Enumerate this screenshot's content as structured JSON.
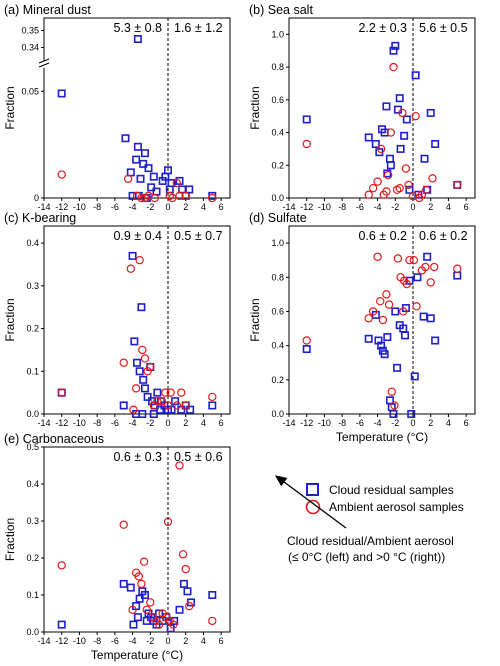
{
  "figure": {
    "legend": {
      "cloud_label": "Cloud residual samples",
      "ambient_label": "Ambient aerosol samples",
      "cloud_color": "#1f1fcc",
      "ambient_color": "#e01a1a"
    },
    "annotation": {
      "line1": "Cloud residual/Ambient aerosol",
      "line2": "(≤ 0°C (left) and >0 °C (right))"
    }
  },
  "chart_data": [
    {
      "panel": "(a)",
      "title": "Mineral dust",
      "type": "scatter",
      "ylabel": "Fraction",
      "xlabel": "",
      "xlim": [
        -14,
        7
      ],
      "ylim": [
        0,
        0.35
      ],
      "broken_axis": {
        "lower": [
          0,
          0.06
        ],
        "upper": [
          0.335,
          0.355
        ]
      },
      "xticks": [
        "-14",
        "-12",
        "-10",
        "-8",
        "-6",
        "-4",
        "-2",
        "0",
        "2",
        "4",
        "6"
      ],
      "yticks": [
        "0",
        "0.05",
        "0.34",
        "0.35"
      ],
      "ratio_left": "5.3 ± 0.8",
      "ratio_right": "1.6 ± 1.2",
      "series": [
        {
          "name": "Cloud residual samples",
          "marker": "square",
          "color": "#1f1fcc",
          "x": [
            -12,
            -4.8,
            -4.2,
            -3.6,
            -3.4,
            -3.1,
            -2.8,
            -2.6,
            -2.2,
            -1.9,
            -1.6,
            -1.3,
            -4.0,
            -3.3,
            -2.4,
            -0.6,
            -0.3,
            0.0,
            0.2,
            0.4,
            1.3,
            1.6,
            2.0,
            2.4,
            5.0,
            -3.4
          ],
          "y": [
            0.049,
            0.028,
            0.012,
            0.018,
            0.024,
            0.009,
            0.016,
            0.021,
            0.014,
            0.005,
            0.01,
            0.003,
            0.001,
            0.001,
            0.0,
            0.008,
            0.01,
            0.013,
            0.004,
            0.007,
            0.008,
            0.004,
            0.001,
            0.004,
            0.001,
            0.345
          ]
        },
        {
          "name": "Ambient aerosol samples",
          "marker": "circle",
          "color": "#e01a1a",
          "x": [
            -12,
            -4.5,
            -3.5,
            -3.0,
            -2.6,
            -2.2,
            -1.5,
            0.0,
            0.2,
            0.5,
            1.0,
            1.3,
            2.0,
            5.0
          ],
          "y": [
            0.011,
            0.009,
            0.001,
            0.0,
            0.0,
            0.001,
            0.0,
            0.061,
            0.001,
            0.0,
            0.007,
            0.001,
            0.001,
            0.0
          ]
        }
      ]
    },
    {
      "panel": "(b)",
      "title": "Sea salt",
      "type": "scatter",
      "ylabel": "Fraction",
      "xlabel": "",
      "xlim": [
        -14,
        7
      ],
      "ylim": [
        0,
        1.1
      ],
      "xticks": [
        "-14",
        "-12",
        "-10",
        "-8",
        "-6",
        "-4",
        "-2",
        "0",
        "2",
        "4",
        "6"
      ],
      "yticks": [
        "0.0",
        "0.2",
        "0.4",
        "0.6",
        "0.8",
        "1.0"
      ],
      "ratio_left": "2.2 ± 0.3",
      "ratio_right": "5.6 ± 0.5",
      "series": [
        {
          "name": "Cloud residual samples",
          "marker": "square",
          "color": "#1f1fcc",
          "x": [
            -12,
            -5.0,
            -4.2,
            -3.8,
            -3.5,
            -3.2,
            -2.9,
            -2.6,
            -2.2,
            -2.0,
            -1.7,
            -1.4,
            -1.0,
            -0.7,
            -0.4,
            0.3,
            0.6,
            1.3,
            1.6,
            2.0,
            2.5,
            5.0,
            -3.0,
            -2.5,
            -1.5
          ],
          "y": [
            0.48,
            0.37,
            0.33,
            0.28,
            0.42,
            0.4,
            0.15,
            0.24,
            0.9,
            0.93,
            0.54,
            0.3,
            0.38,
            0.48,
            0.05,
            0.75,
            0.02,
            0.24,
            0.05,
            0.52,
            0.33,
            0.08,
            0.56,
            0.2,
            0.61
          ]
        },
        {
          "name": "Ambient aerosol samples",
          "marker": "circle",
          "color": "#e01a1a",
          "x": [
            -12,
            -5.0,
            -4.5,
            -4.0,
            -3.6,
            -3.3,
            -3.0,
            -2.8,
            -2.5,
            -2.2,
            -1.8,
            -1.5,
            -1.2,
            -0.8,
            -0.5,
            0.0,
            0.3,
            0.7,
            1.0,
            1.5,
            2.2,
            5.0
          ],
          "y": [
            0.33,
            0.02,
            0.06,
            0.1,
            0.3,
            0.02,
            0.04,
            0.14,
            0.4,
            0.8,
            0.05,
            0.06,
            0.52,
            0.18,
            0.08,
            0.01,
            0.5,
            0.0,
            0.02,
            0.05,
            0.12,
            0.08
          ]
        }
      ]
    },
    {
      "panel": "(c)",
      "title": "K-bearing",
      "type": "scatter",
      "ylabel": "Fraction",
      "xlabel": "",
      "xlim": [
        -14,
        7
      ],
      "ylim": [
        0,
        0.44
      ],
      "xticks": [
        "-14",
        "-12",
        "-10",
        "-8",
        "-6",
        "-4",
        "-2",
        "0",
        "2",
        "4",
        "6"
      ],
      "yticks": [
        "0.0",
        "0.1",
        "0.2",
        "0.3",
        "0.4"
      ],
      "ratio_left": "0.9 ± 0.4",
      "ratio_right": "0.5 ± 0.7",
      "series": [
        {
          "name": "Cloud residual samples",
          "marker": "square",
          "color": "#1f1fcc",
          "x": [
            -12,
            -5.0,
            -4.0,
            -3.8,
            -3.5,
            -3.2,
            -3.0,
            -2.8,
            -2.6,
            -2.3,
            -2.0,
            -1.8,
            -1.5,
            -1.2,
            -0.8,
            -0.4,
            0.0,
            0.4,
            0.8,
            1.5,
            2.0,
            2.5,
            5.0,
            -3.6,
            -2.9,
            -1.6,
            -0.9
          ],
          "y": [
            0.05,
            0.02,
            0.37,
            0.17,
            0.12,
            0.1,
            0.25,
            0.08,
            0.06,
            0.04,
            0.11,
            0.03,
            0.02,
            0.05,
            0.03,
            0.02,
            0.01,
            0.01,
            0.03,
            0.01,
            0.02,
            0.01,
            0.02,
            0.0,
            0.0,
            0.0,
            0.01
          ]
        },
        {
          "name": "Ambient aerosol samples",
          "marker": "circle",
          "color": "#e01a1a",
          "x": [
            -12,
            -5.0,
            -4.2,
            -3.9,
            -3.6,
            -3.2,
            -2.9,
            -2.6,
            -2.3,
            -2.0,
            -1.6,
            -1.2,
            -0.7,
            -0.3,
            0.0,
            0.3,
            1.0,
            1.5,
            2.0,
            5.0
          ],
          "y": [
            0.05,
            0.12,
            0.34,
            0.01,
            0.06,
            0.36,
            0.15,
            0.13,
            0.1,
            0.11,
            0.02,
            0.03,
            0.03,
            0.05,
            0.02,
            0.05,
            0.02,
            0.05,
            0.02,
            0.04
          ]
        }
      ]
    },
    {
      "panel": "(d)",
      "title": "Sulfate",
      "type": "scatter",
      "ylabel": "Fraction",
      "xlabel": "Temperature (°C)",
      "xlim": [
        -14,
        7
      ],
      "ylim": [
        0,
        1.1
      ],
      "xticks": [
        "-14",
        "-12",
        "-10",
        "-8",
        "-6",
        "-4",
        "-2",
        "0",
        "2",
        "4",
        "6"
      ],
      "yticks": [
        "0.0",
        "0.2",
        "0.4",
        "0.6",
        "0.8",
        "1.0"
      ],
      "ratio_left": "0.6 ± 0.2",
      "ratio_right": "0.6 ± 0.2",
      "series": [
        {
          "name": "Cloud residual samples",
          "marker": "square",
          "color": "#1f1fcc",
          "x": [
            -12,
            -5.0,
            -4.2,
            -3.9,
            -3.6,
            -3.2,
            -2.9,
            -2.6,
            -2.2,
            -2.0,
            -1.8,
            -1.5,
            -1.1,
            -0.8,
            -0.4,
            -0.2,
            0.2,
            0.5,
            1.2,
            1.6,
            2.0,
            2.5,
            5.0,
            -3.4,
            -2.4,
            -0.9
          ],
          "y": [
            0.38,
            0.44,
            0.58,
            0.43,
            0.4,
            0.35,
            0.45,
            0.08,
            0.0,
            0.6,
            0.27,
            0.52,
            0.5,
            0.62,
            0.78,
            0.0,
            0.22,
            0.8,
            0.57,
            0.92,
            0.56,
            0.43,
            0.81,
            0.37,
            0.04,
            0.46
          ]
        },
        {
          "name": "Ambient aerosol samples",
          "marker": "circle",
          "color": "#e01a1a",
          "x": [
            -12,
            -5.0,
            -4.5,
            -4.0,
            -3.7,
            -3.4,
            -3.0,
            -2.7,
            -2.4,
            -2.1,
            -1.7,
            -1.4,
            -1.1,
            -0.7,
            -0.4,
            0.1,
            0.4,
            1.0,
            1.4,
            2.0,
            2.4,
            5.0,
            -1.0
          ],
          "y": [
            0.43,
            0.56,
            0.6,
            0.92,
            0.66,
            0.55,
            0.7,
            0.64,
            0.13,
            0.05,
            0.91,
            0.8,
            0.6,
            0.76,
            0.9,
            0.9,
            0.63,
            0.84,
            0.86,
            0.77,
            0.86,
            0.85,
            0.78
          ]
        }
      ]
    },
    {
      "panel": "(e)",
      "title": "Carbonaceous",
      "type": "scatter",
      "ylabel": "Fraction",
      "xlabel": "Temperature (°C)",
      "xlim": [
        -14,
        7
      ],
      "ylim": [
        0,
        0.5
      ],
      "xticks": [
        "-14",
        "-12",
        "-10",
        "-8",
        "-6",
        "-4",
        "-2",
        "0",
        "2",
        "4",
        "6"
      ],
      "yticks": [
        "0.0",
        "0.1",
        "0.2",
        "0.3",
        "0.4",
        "0.5"
      ],
      "ratio_left": "0.6 ± 0.3",
      "ratio_right": "0.5 ± 0.6",
      "series": [
        {
          "name": "Cloud residual samples",
          "marker": "square",
          "color": "#1f1fcc",
          "x": [
            -12,
            -5.0,
            -4.2,
            -3.9,
            -3.6,
            -3.2,
            -2.9,
            -2.6,
            -2.2,
            -1.9,
            -1.6,
            -1.3,
            -1.0,
            -0.6,
            -0.2,
            0.3,
            0.7,
            1.3,
            1.8,
            2.2,
            2.6,
            5.0,
            -3.4,
            -2.4
          ],
          "y": [
            0.02,
            0.13,
            0.12,
            0.02,
            0.07,
            0.09,
            0.11,
            0.1,
            0.05,
            0.04,
            0.03,
            0.02,
            0.05,
            0.03,
            0.04,
            0.01,
            0.03,
            0.06,
            0.13,
            0.11,
            0.08,
            0.1,
            0.04,
            0.03
          ]
        },
        {
          "name": "Ambient aerosol samples",
          "marker": "circle",
          "color": "#e01a1a",
          "x": [
            -12,
            -5.0,
            -4.0,
            -3.6,
            -3.3,
            -3.0,
            -2.7,
            -2.4,
            -2.0,
            -1.7,
            -1.3,
            -1.0,
            -0.6,
            -0.2,
            0.2,
            0.6,
            1.3,
            1.7,
            2.0,
            2.4,
            5.0
          ],
          "y": [
            0.18,
            0.29,
            0.06,
            0.16,
            0.15,
            0.13,
            0.19,
            0.06,
            0.08,
            0.04,
            0.03,
            0.02,
            0.05,
            0.04,
            0.03,
            0.02,
            0.45,
            0.21,
            0.17,
            0.07,
            0.03
          ]
        }
      ]
    }
  ]
}
